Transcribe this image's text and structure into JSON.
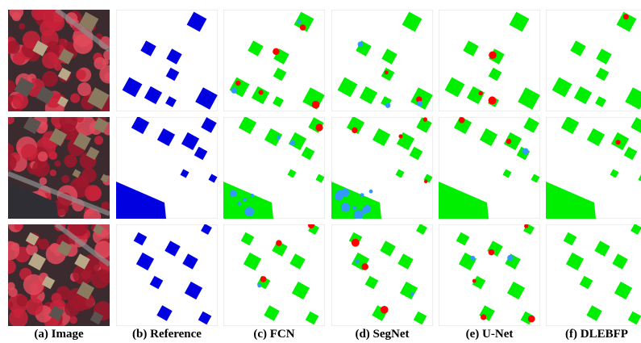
{
  "figure": {
    "captions": [
      "(a) Image",
      "(b) Reference",
      "(c) FCN",
      "(d) SegNet",
      "(e) U-Net",
      "(f) DLEBFP"
    ]
  }
}
